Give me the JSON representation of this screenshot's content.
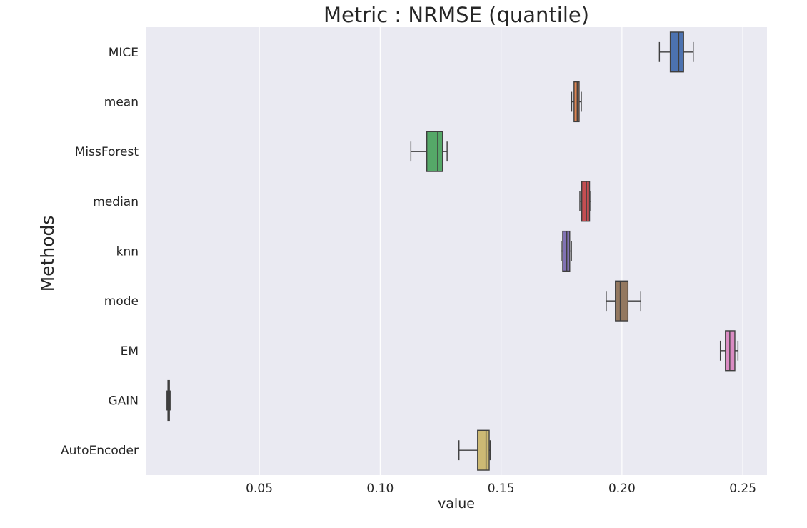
{
  "chart_data": {
    "type": "boxplot",
    "orientation": "horizontal",
    "title": "Metric : NRMSE (quantile)",
    "xlabel": "value",
    "ylabel": "Methods",
    "xlim": [
      0.003,
      0.26
    ],
    "xticks": [
      0.05,
      0.1,
      0.15,
      0.2,
      0.25
    ],
    "xtick_labels": [
      "0.05",
      "0.10",
      "0.15",
      "0.20",
      "0.25"
    ],
    "grid": true,
    "background_color": "#EAEAF2",
    "grid_color": "#FFFFFF",
    "categories": [
      "MICE",
      "mean",
      "MissForest",
      "median",
      "knn",
      "mode",
      "EM",
      "GAIN",
      "AutoEncoder"
    ],
    "series": [
      {
        "category": "MICE",
        "whisker_low": 0.2155,
        "q1": 0.22,
        "median": 0.2235,
        "q3": 0.2255,
        "whisker_high": 0.2295,
        "color": "#4C72B0"
      },
      {
        "category": "mean",
        "whisker_low": 0.1792,
        "q1": 0.1802,
        "median": 0.1815,
        "q3": 0.1823,
        "whisker_high": 0.1832,
        "color": "#DD8452"
      },
      {
        "category": "MissForest",
        "whisker_low": 0.1127,
        "q1": 0.1193,
        "median": 0.1238,
        "q3": 0.1258,
        "whisker_high": 0.1277,
        "color": "#55A868"
      },
      {
        "category": "median",
        "whisker_low": 0.1826,
        "q1": 0.1834,
        "median": 0.1853,
        "q3": 0.1866,
        "whisker_high": 0.1871,
        "color": "#C44E52"
      },
      {
        "category": "knn",
        "whisker_low": 0.1749,
        "q1": 0.1755,
        "median": 0.1772,
        "q3": 0.1784,
        "whisker_high": 0.1791,
        "color": "#8172B3"
      },
      {
        "category": "mode",
        "whisker_low": 0.1935,
        "q1": 0.1973,
        "median": 0.1993,
        "q3": 0.2025,
        "whisker_high": 0.2078,
        "color": "#937860"
      },
      {
        "category": "EM",
        "whisker_low": 0.2407,
        "q1": 0.2428,
        "median": 0.2446,
        "q3": 0.2467,
        "whisker_high": 0.248,
        "color": "#DA8BC3"
      },
      {
        "category": "GAIN",
        "whisker_low": 0.0118,
        "q1": 0.0122,
        "median": 0.0125,
        "q3": 0.0128,
        "whisker_high": 0.0131,
        "color": "#8C8C8C"
      },
      {
        "category": "AutoEncoder",
        "whisker_low": 0.1326,
        "q1": 0.1403,
        "median": 0.1438,
        "q3": 0.1451,
        "whisker_high": 0.1455,
        "color": "#CCB974"
      }
    ]
  }
}
